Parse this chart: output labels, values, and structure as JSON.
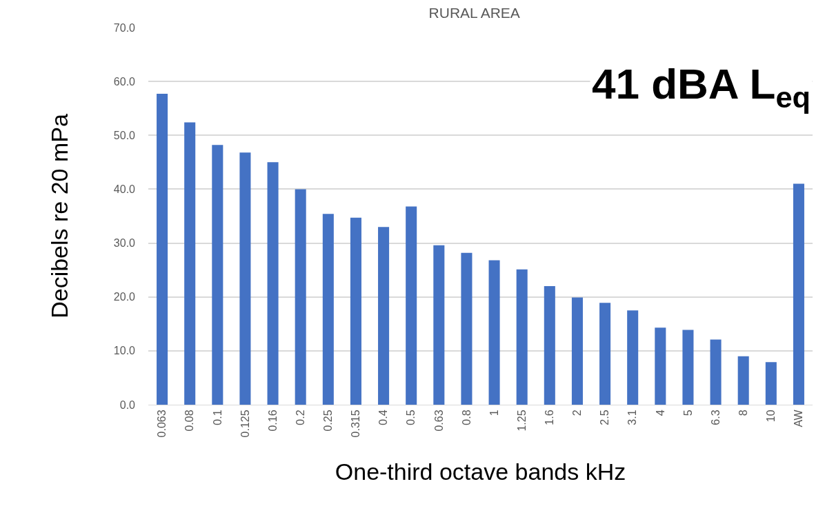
{
  "chart_data": {
    "type": "bar",
    "title": "RURAL AREA",
    "xlabel": "One-third octave bands kHz",
    "ylabel": "Decibels re 20 mPa",
    "categories": [
      "0.063",
      "0.08",
      "0.1",
      "0.125",
      "0.16",
      "0.2",
      "0.25",
      "0.315",
      "0.4",
      "0.5",
      "0.63",
      "0.8",
      "1",
      "1.25",
      "1.6",
      "2",
      "2.5",
      "3.1",
      "4",
      "5",
      "6.3",
      "8",
      "10",
      "AW"
    ],
    "values": [
      57.7,
      52.4,
      48.2,
      46.8,
      45.0,
      40.0,
      35.4,
      34.7,
      33.0,
      36.8,
      29.6,
      28.2,
      26.8,
      25.1,
      22.0,
      19.9,
      18.9,
      17.5,
      14.3,
      13.9,
      12.1,
      9.0,
      7.9,
      41.0
    ],
    "color": "#4472c4",
    "ylim": [
      0,
      70
    ],
    "yticks": [
      {
        "value": 0,
        "label": "0.0"
      },
      {
        "value": 10,
        "label": "10.0"
      },
      {
        "value": 20,
        "label": "20.0"
      },
      {
        "value": 30,
        "label": "30.0"
      },
      {
        "value": 40,
        "label": "40.0"
      },
      {
        "value": 50,
        "label": "50.0"
      },
      {
        "value": 60,
        "label": "60.0"
      },
      {
        "value": 70,
        "label": "70.0"
      }
    ],
    "grid": "y",
    "legend": false,
    "annotations": [
      "41 dBA L$_{eq}$"
    ]
  }
}
